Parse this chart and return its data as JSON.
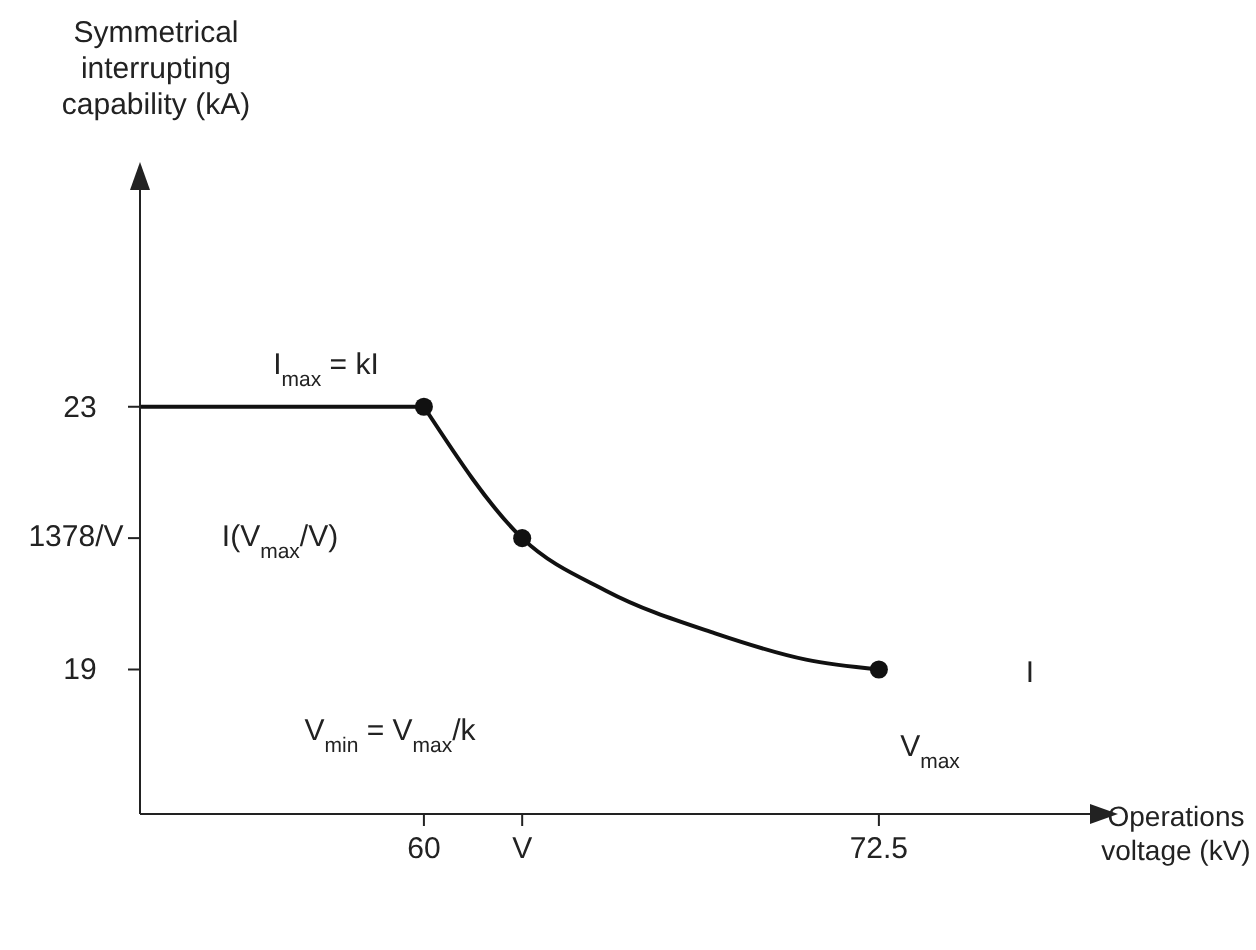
{
  "chart_data": {
    "type": "line",
    "xlabel": "Operations voltage (kV)",
    "ylabel": "Symmetrical interrupting capability (kA)",
    "xlim": [
      52.2,
      78.3
    ],
    "ylim": [
      16.8,
      26.3
    ],
    "xticks": [
      {
        "value": 60,
        "label": "60"
      },
      {
        "value": 62.7,
        "label": "V"
      },
      {
        "value": 72.5,
        "label": "72.5"
      }
    ],
    "yticks": [
      {
        "value": 19,
        "label": "19"
      },
      {
        "value": 21,
        "label": null
      },
      {
        "value": 23,
        "label": "23"
      }
    ],
    "series": [
      {
        "color": "#111111",
        "x": [
          52.2,
          60
        ],
        "values": [
          23,
          23
        ],
        "marker": "none"
      },
      {
        "color": "#111111",
        "x": [
          60,
          62.7,
          65,
          68,
          70.5,
          72.5
        ],
        "values": [
          23,
          21,
          20.2,
          19.55,
          19.15,
          19
        ],
        "marker": "none"
      },
      {
        "type": "scatter",
        "color": "#111111",
        "x": [
          60,
          62.7,
          72.5
        ],
        "values": [
          23,
          21,
          19
        ],
        "marker": "circle"
      }
    ],
    "annotations": [
      "I$_{max}$ = kI",
      "I(V$_{max}$/V)",
      "V$_{min}$ = V$_{max}$/k",
      "V$_{max}$",
      "I",
      "1378/V"
    ]
  }
}
